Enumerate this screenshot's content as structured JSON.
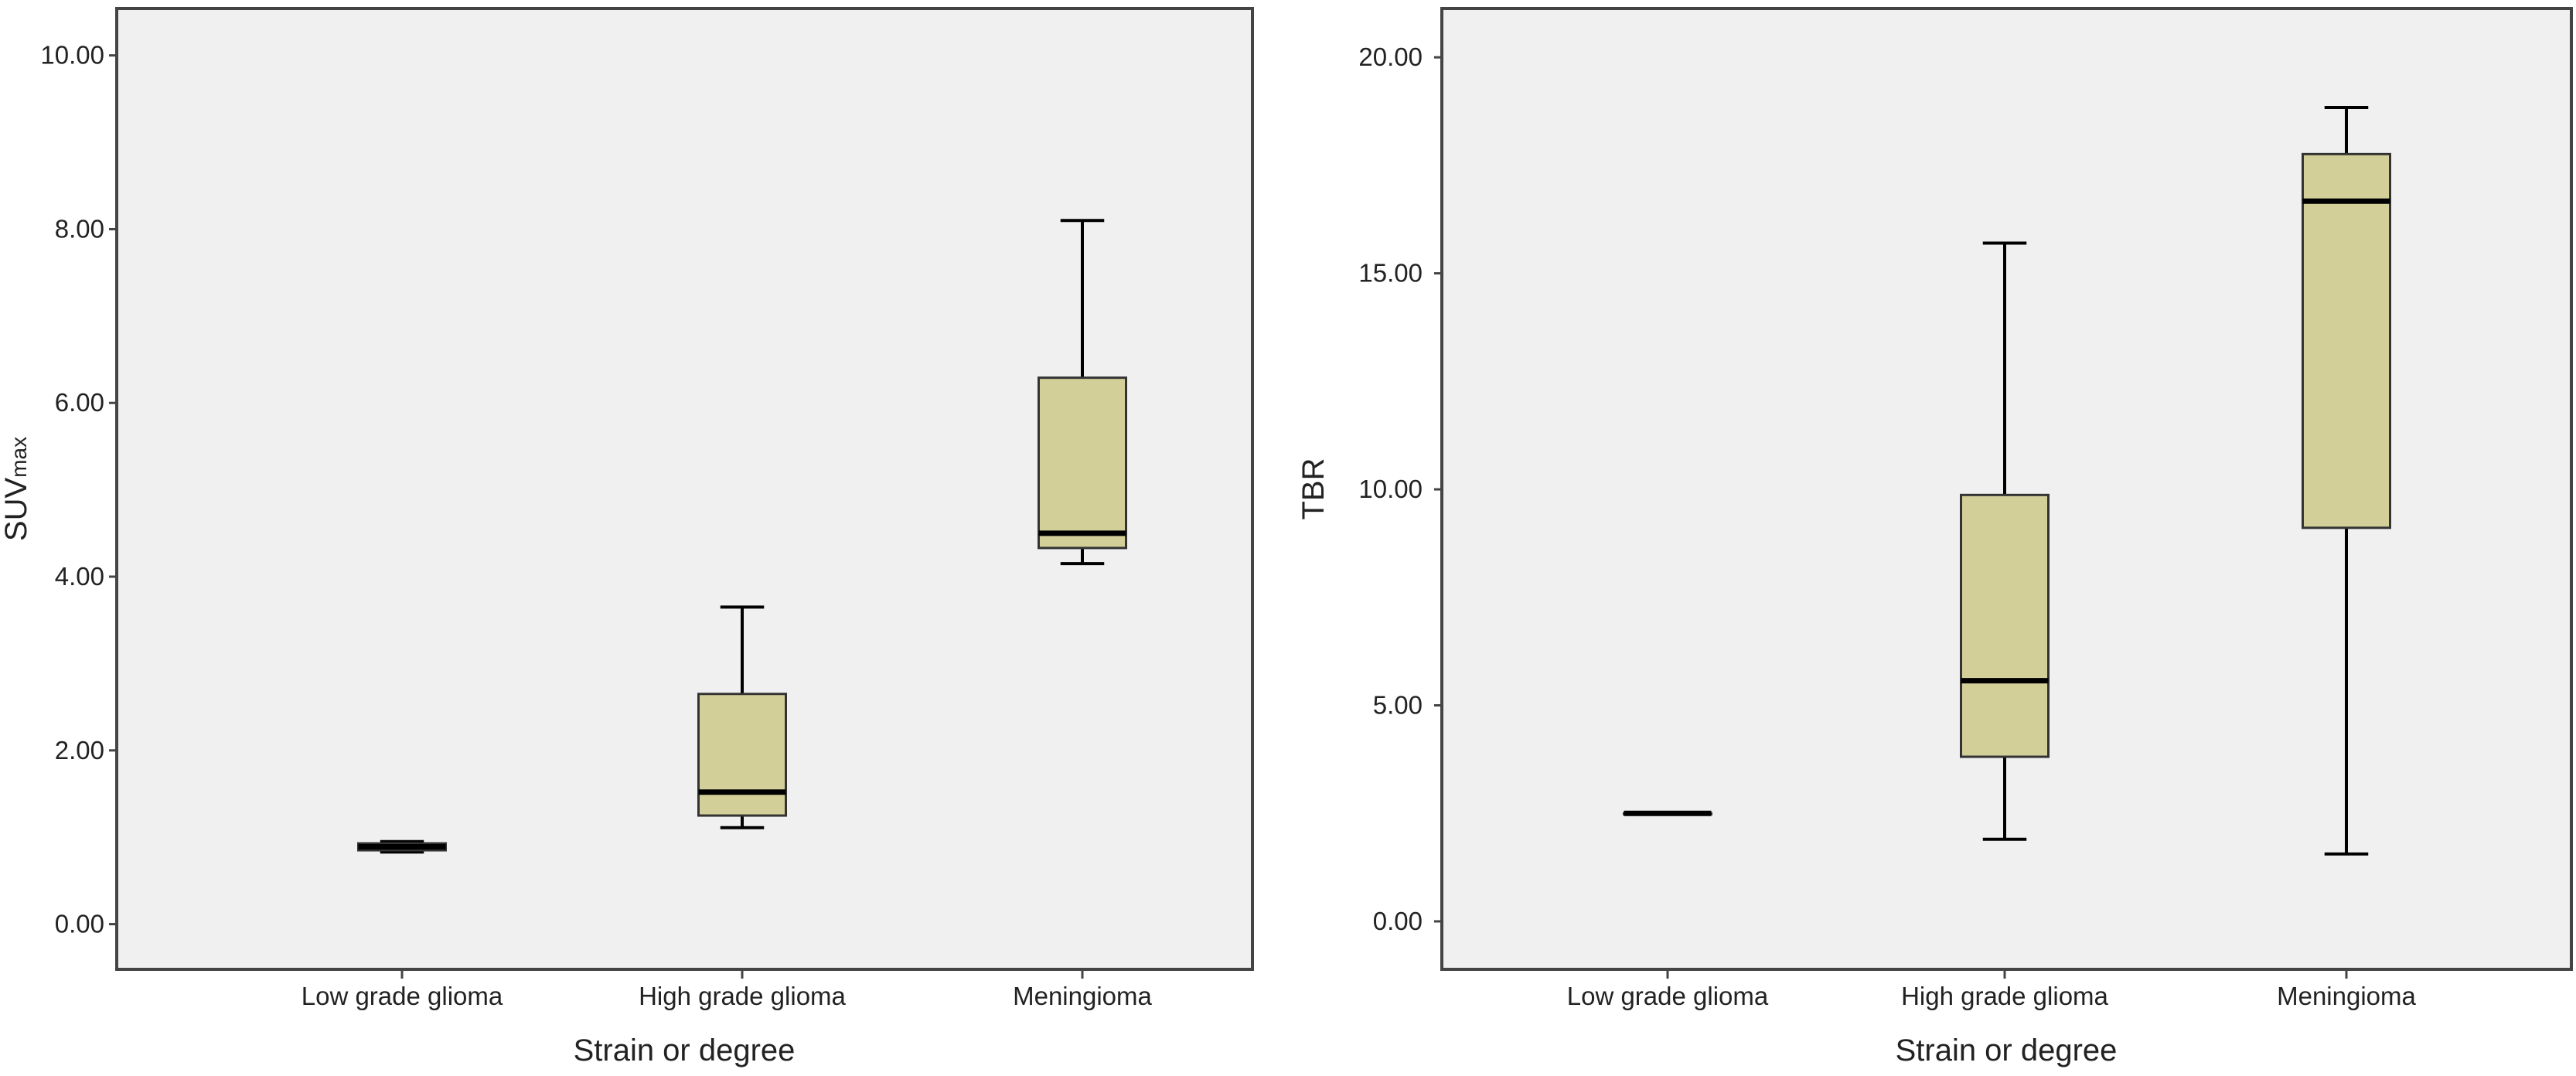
{
  "chart_data": [
    {
      "type": "box",
      "xlabel": "Strain or degree",
      "ylabel_main": "SUV",
      "ylabel_sub": "max",
      "ylim": [
        -0.52,
        10.54
      ],
      "yticks": [
        0,
        2,
        4,
        6,
        8,
        10
      ],
      "ytick_labels": [
        "0.00",
        "2.00",
        "4.00",
        "6.00",
        "8.00",
        "10.00"
      ],
      "grid": false,
      "categories": [
        "Low grade glioma",
        "High grade glioma",
        "Meningioma"
      ],
      "boxes": [
        {
          "min": 0.83,
          "q1": 0.85,
          "median": 0.89,
          "q3": 0.93,
          "max": 0.95
        },
        {
          "min": 1.11,
          "q1": 1.25,
          "median": 1.52,
          "q3": 2.65,
          "max": 3.65
        },
        {
          "min": 4.15,
          "q1": 4.33,
          "median": 4.5,
          "q3": 6.29,
          "max": 8.1
        }
      ]
    },
    {
      "type": "box",
      "xlabel": "Strain or degree",
      "ylabel_main": "TBR",
      "ylabel_sub": "",
      "ylim": [
        -1.11,
        21.13
      ],
      "yticks": [
        0,
        5,
        10,
        15,
        20
      ],
      "ytick_labels": [
        "0.00",
        "5.00",
        "10.00",
        "15.00",
        "20.00"
      ],
      "grid": false,
      "categories": [
        "Low grade glioma",
        "High grade glioma",
        "Meningioma"
      ],
      "boxes": [
        {
          "min": 2.5,
          "q1": 2.5,
          "median": 2.5,
          "q3": 2.5,
          "max": 2.5
        },
        {
          "min": 1.9,
          "q1": 3.81,
          "median": 5.57,
          "q3": 9.87,
          "max": 15.7
        },
        {
          "min": 1.56,
          "q1": 9.11,
          "median": 16.67,
          "q3": 17.76,
          "max": 18.84
        }
      ]
    }
  ],
  "colors": {
    "plot_bg": "#f0f0f0",
    "box_fill": "#d3cf98",
    "line": "#000000",
    "frame": "#444444"
  }
}
